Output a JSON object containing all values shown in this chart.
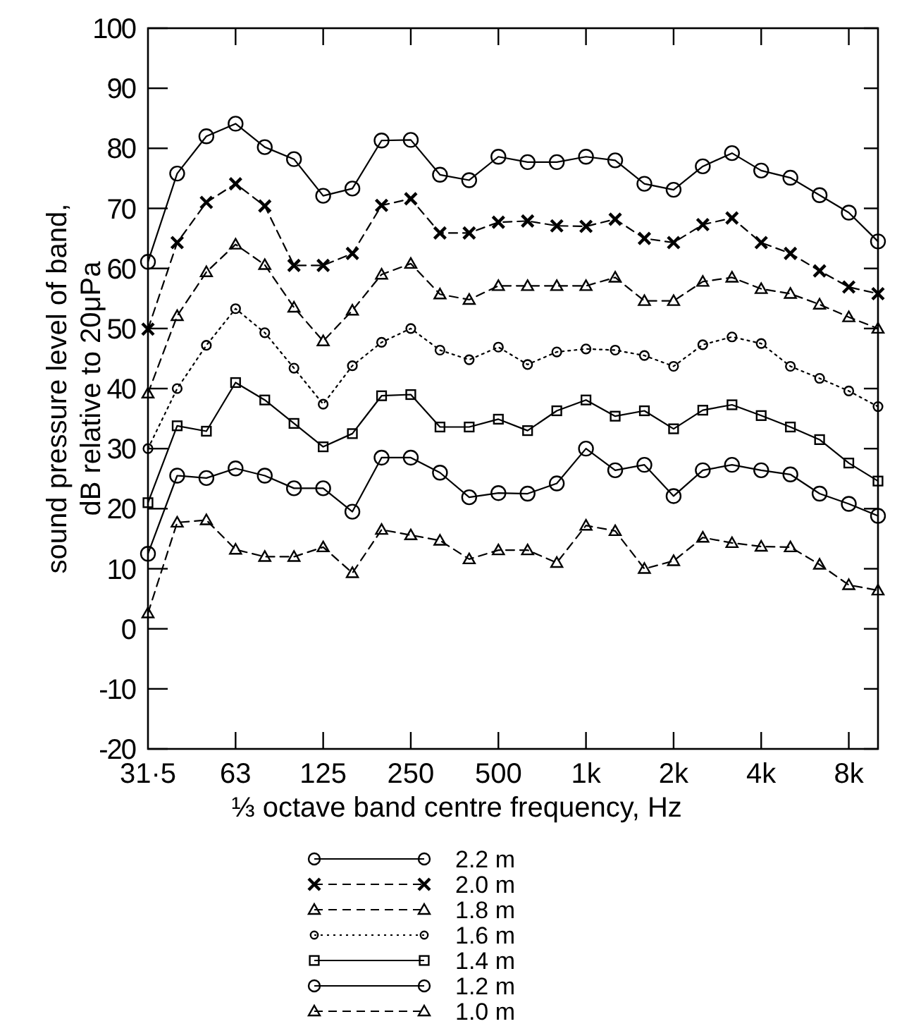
{
  "chart_data": {
    "type": "line",
    "xlabel": "⅓ octave band centre frequency, Hz",
    "ylabel": "sound pressure level of band,\ndB relative to 20μPa",
    "categories": [
      "31·5",
      null,
      null,
      "63",
      null,
      null,
      "125",
      null,
      null,
      "250",
      null,
      null,
      "500",
      null,
      null,
      "1k",
      null,
      null,
      "2k",
      null,
      null,
      "4k",
      null,
      null,
      "8k",
      null
    ],
    "ylim": [
      -20,
      100
    ],
    "yticks": [
      -20,
      -10,
      0,
      10,
      20,
      30,
      40,
      50,
      60,
      70,
      80,
      90,
      100
    ],
    "legend": "bottom",
    "grid": false,
    "series": [
      {
        "name": "2.2 m",
        "color": "#000000",
        "marker": "circle",
        "line_style": "solid",
        "values": [
          61.1,
          75.8,
          82.0,
          84.1,
          80.2,
          78.2,
          72.1,
          73.3,
          81.3,
          81.4,
          75.6,
          74.7,
          78.6,
          77.7,
          77.7,
          78.6,
          78.0,
          74.1,
          73.1,
          77.0,
          79.2,
          76.3,
          75.1,
          72.2,
          69.3,
          64.5
        ]
      },
      {
        "name": "2.0 m",
        "color": "#000000",
        "marker": "cross",
        "line_style": "dashed",
        "values": [
          49.9,
          64.3,
          71.0,
          74.1,
          70.4,
          60.5,
          60.5,
          62.5,
          70.5,
          71.6,
          65.9,
          65.9,
          67.7,
          67.9,
          67.1,
          67.0,
          68.2,
          65.0,
          64.3,
          67.3,
          68.4,
          64.3,
          62.5,
          59.6,
          56.9,
          55.8
        ]
      },
      {
        "name": "1.8 m",
        "color": "#000000",
        "marker": "triangle",
        "line_style": "dashed",
        "values": [
          39.2,
          52.1,
          59.4,
          64.0,
          60.6,
          53.5,
          47.9,
          53.0,
          59.0,
          60.8,
          55.7,
          54.8,
          57.1,
          57.1,
          57.1,
          57.1,
          58.5,
          54.6,
          54.6,
          57.8,
          58.5,
          56.6,
          55.8,
          54.0,
          51.9,
          50.0
        ]
      },
      {
        "name": "1.6 m",
        "color": "#000000",
        "marker": "circle",
        "line_style": "dotted",
        "values": [
          30.0,
          40.0,
          47.2,
          53.3,
          49.3,
          43.4,
          37.4,
          43.8,
          47.7,
          50.0,
          46.4,
          44.8,
          46.9,
          44.0,
          46.1,
          46.6,
          46.4,
          45.5,
          43.7,
          47.3,
          48.6,
          47.5,
          43.7,
          41.7,
          39.6,
          37.0
        ]
      },
      {
        "name": "1.4 m",
        "color": "#000000",
        "marker": "square",
        "line_style": "solid",
        "values": [
          21.0,
          33.8,
          32.9,
          41.0,
          38.1,
          34.2,
          30.3,
          32.5,
          38.8,
          39.0,
          33.6,
          33.6,
          34.9,
          33.0,
          36.3,
          38.1,
          35.4,
          36.3,
          33.3,
          36.4,
          37.3,
          35.5,
          33.6,
          31.5,
          27.6,
          24.6
        ]
      },
      {
        "name": "1.2 m",
        "color": "#000000",
        "marker": "circle",
        "line_style": "solid",
        "values": [
          12.5,
          25.5,
          25.1,
          26.7,
          25.5,
          23.4,
          23.4,
          19.5,
          28.5,
          28.5,
          26.0,
          21.9,
          22.6,
          22.5,
          24.2,
          30.0,
          26.4,
          27.3,
          22.1,
          26.4,
          27.3,
          26.4,
          25.7,
          22.5,
          20.8,
          18.8
        ]
      },
      {
        "name": "1.0 m",
        "color": "#000000",
        "marker": "triangle",
        "line_style": "dashed",
        "values": [
          2.6,
          17.7,
          18.1,
          13.2,
          12.0,
          12.0,
          13.6,
          9.3,
          16.5,
          15.6,
          14.7,
          11.6,
          13.1,
          13.1,
          11.0,
          17.2,
          16.3,
          10.0,
          11.3,
          15.2,
          14.3,
          13.7,
          13.6,
          10.7,
          7.3,
          6.4
        ]
      }
    ]
  }
}
